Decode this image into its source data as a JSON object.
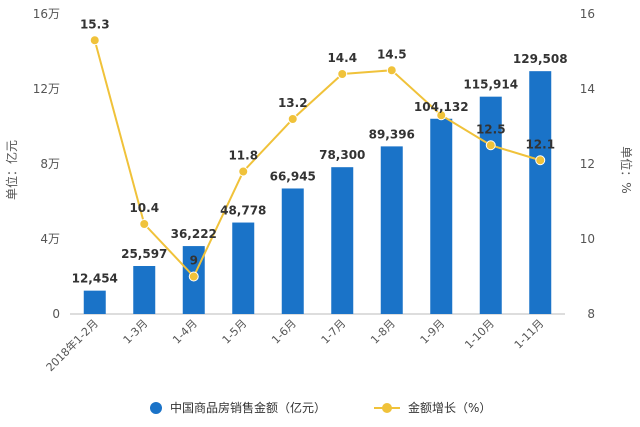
{
  "chart_data": {
    "type": "bar",
    "categories": [
      "2018年1-2月",
      "1-3月",
      "1-4月",
      "1-5月",
      "1-6月",
      "1-7月",
      "1-8月",
      "1-9月",
      "1-10月",
      "1-11月"
    ],
    "series": [
      {
        "name": "中国商品房销售金额（亿元）",
        "type": "bar",
        "axis": "left",
        "values": [
          12454,
          25597,
          36222,
          48778,
          66945,
          78300,
          89396,
          104132,
          115914,
          129508
        ],
        "labels": [
          "12,454",
          "25,597",
          "36,222",
          "48,778",
          "66,945",
          "78,300",
          "89,396",
          "104,132",
          "115,914",
          "129,508"
        ],
        "color": "#1a73c8"
      },
      {
        "name": "金额增长（%）",
        "type": "line",
        "axis": "right",
        "values": [
          15.3,
          10.4,
          9,
          11.8,
          13.2,
          14.4,
          14.5,
          13.3,
          12.5,
          12.1
        ],
        "labels": [
          "15.3",
          "10.4",
          "9",
          "11.8",
          "13.2",
          "14.4",
          "14.5",
          "",
          "12.5",
          "12.1"
        ],
        "color": "#f0c23a"
      }
    ],
    "y_left": {
      "label": "单位：亿元",
      "ticks": [
        "0",
        "4万",
        "8万",
        "12万",
        "16万"
      ],
      "values": [
        0,
        40000,
        80000,
        120000,
        160000
      ],
      "range": [
        0,
        160000
      ]
    },
    "y_right": {
      "label": "单位：%",
      "ticks": [
        "8",
        "10",
        "12",
        "14",
        "16"
      ],
      "values": [
        8,
        10,
        12,
        14,
        16
      ],
      "range": [
        8,
        16
      ]
    },
    "grid": false,
    "legend_position": "bottom"
  }
}
